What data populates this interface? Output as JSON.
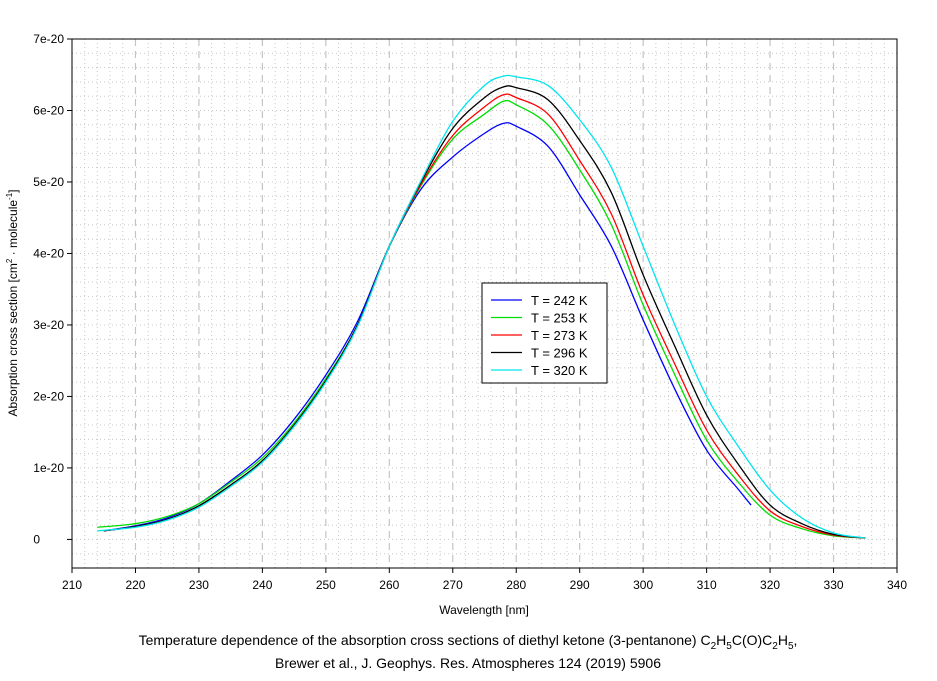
{
  "chart_data": {
    "type": "line",
    "title": "",
    "xlabel": "Wavelength [nm]",
    "ylabel": "Absorption cross section [cm² · molecule⁻¹]",
    "ylabel_parts": {
      "pre": "Absorption cross section [cm",
      "sup1": "2",
      "mid": " · molecule",
      "sup2": "-1",
      "post": "]"
    },
    "xlim": [
      210,
      340
    ],
    "ylim": [
      -0.4,
      7
    ],
    "y_unit": "1e-20",
    "xticks": [
      "210",
      "220",
      "230",
      "240",
      "250",
      "260",
      "270",
      "280",
      "290",
      "300",
      "310",
      "320",
      "330",
      "340"
    ],
    "yticks": [
      {
        "v": 0,
        "label": "0"
      },
      {
        "v": 1,
        "label": "1e-20"
      },
      {
        "v": 2,
        "label": "2e-20"
      },
      {
        "v": 3,
        "label": "3e-20"
      },
      {
        "v": 4,
        "label": "4e-20"
      },
      {
        "v": 5,
        "label": "5e-20"
      },
      {
        "v": 6,
        "label": "6e-20"
      },
      {
        "v": 7,
        "label": "7e-20"
      }
    ],
    "grid": true,
    "legend_position": "center-right",
    "series": [
      {
        "name": "T = 242 K",
        "color": "#0000ff",
        "x": [
          215,
          220,
          225,
          230,
          235,
          240,
          245,
          250,
          255,
          260,
          265,
          270,
          275,
          278,
          280,
          285,
          290,
          295,
          300,
          305,
          310,
          315,
          317
        ],
        "y": [
          0.12,
          0.19,
          0.3,
          0.5,
          0.82,
          1.18,
          1.68,
          2.3,
          3.05,
          4.1,
          4.9,
          5.35,
          5.68,
          5.82,
          5.78,
          5.5,
          4.82,
          4.1,
          3.07,
          2.1,
          1.25,
          0.7,
          0.48
        ]
      },
      {
        "name": "T = 253 K",
        "color": "#00dd00",
        "x": [
          214,
          220,
          225,
          230,
          235,
          240,
          245,
          250,
          255,
          260,
          265,
          270,
          275,
          278,
          280,
          285,
          290,
          295,
          300,
          305,
          310,
          315,
          320,
          325,
          330,
          335
        ],
        "y": [
          0.17,
          0.22,
          0.32,
          0.5,
          0.8,
          1.14,
          1.63,
          2.25,
          3.0,
          4.1,
          4.95,
          5.6,
          5.95,
          6.13,
          6.08,
          5.8,
          5.17,
          4.4,
          3.28,
          2.3,
          1.39,
          0.8,
          0.34,
          0.15,
          0.05,
          0.02
        ]
      },
      {
        "name": "T = 273 K",
        "color": "#ff0000",
        "x": [
          215,
          220,
          225,
          230,
          235,
          240,
          245,
          250,
          255,
          260,
          265,
          270,
          275,
          278,
          280,
          285,
          290,
          295,
          300,
          305,
          310,
          315,
          320,
          325,
          330,
          335
        ],
        "y": [
          0.12,
          0.18,
          0.28,
          0.47,
          0.76,
          1.1,
          1.6,
          2.22,
          3.0,
          4.1,
          4.97,
          5.65,
          6.05,
          6.22,
          6.18,
          5.95,
          5.3,
          4.55,
          3.42,
          2.45,
          1.53,
          0.9,
          0.4,
          0.18,
          0.06,
          0.02
        ]
      },
      {
        "name": "T = 296 K",
        "color": "#000000",
        "x": [
          215,
          220,
          225,
          230,
          235,
          240,
          245,
          250,
          255,
          260,
          265,
          270,
          275,
          278,
          280,
          285,
          290,
          295,
          300,
          305,
          310,
          315,
          320,
          325,
          330,
          335
        ],
        "y": [
          0.12,
          0.18,
          0.28,
          0.47,
          0.76,
          1.1,
          1.6,
          2.22,
          3.0,
          4.1,
          5.0,
          5.75,
          6.18,
          6.33,
          6.32,
          6.15,
          5.58,
          4.85,
          3.7,
          2.7,
          1.74,
          1.05,
          0.48,
          0.22,
          0.07,
          0.02
        ]
      },
      {
        "name": "T = 320 K",
        "color": "#00e5ee",
        "x": [
          214,
          220,
          225,
          230,
          235,
          240,
          245,
          250,
          255,
          260,
          265,
          270,
          275,
          278,
          280,
          285,
          290,
          295,
          300,
          305,
          310,
          315,
          320,
          325,
          330,
          335
        ],
        "y": [
          0.12,
          0.17,
          0.27,
          0.45,
          0.74,
          1.08,
          1.58,
          2.2,
          2.98,
          4.1,
          5.02,
          5.85,
          6.35,
          6.48,
          6.47,
          6.35,
          5.87,
          5.2,
          4.1,
          3.0,
          2.0,
          1.3,
          0.69,
          0.3,
          0.09,
          0.02
        ]
      }
    ]
  },
  "caption": {
    "line1_pre": "Temperature dependence of the absorption cross sections of diethyl ketone (3-pentanone) C",
    "sub1": "2",
    "h1": "H",
    "sub2": "5",
    "mid": "C(O)C",
    "sub3": "2",
    "h2": "H",
    "sub4": "5",
    "end": ",",
    "line2": "Brewer et al., J. Geophys. Res. Atmospheres 124 (2019) 5906"
  }
}
